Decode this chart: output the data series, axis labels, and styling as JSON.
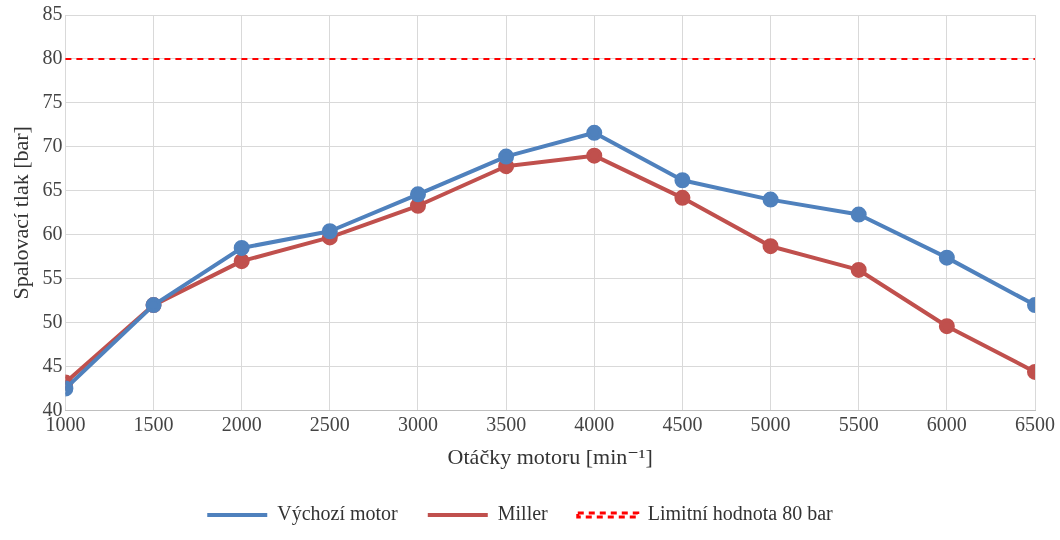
{
  "chart_data": {
    "type": "line",
    "xlabel": "Otáčky motoru [min⁻¹]",
    "ylabel": "Spalovací tlak [bar]",
    "x": [
      1000,
      1500,
      2000,
      2500,
      3000,
      3500,
      4000,
      4500,
      5000,
      5500,
      6000,
      6500
    ],
    "series": [
      {
        "name": "Výchozí motor",
        "color": "#4f81bd",
        "values": [
          42.5,
          52,
          58.5,
          60.4,
          64.6,
          68.9,
          71.6,
          66.2,
          64.0,
          62.3,
          57.4,
          52.0
        ]
      },
      {
        "name": "Miller",
        "color": "#c0504d",
        "values": [
          43.2,
          52,
          57.0,
          59.7,
          63.3,
          67.8,
          69.0,
          64.2,
          58.7,
          56.0,
          49.6,
          44.4
        ]
      }
    ],
    "xlim": [
      1000,
      6500
    ],
    "xticks": [
      1000,
      1500,
      2000,
      2500,
      3000,
      3500,
      4000,
      4500,
      5000,
      5500,
      6000,
      6500
    ],
    "ylim": [
      40,
      85
    ],
    "yticks": [
      40,
      45,
      50,
      55,
      60,
      65,
      70,
      75,
      80,
      85
    ],
    "ref_lines": [
      {
        "axis": "y",
        "value": 80,
        "label": "Limitní hodnota 80 bar",
        "color": "#ff0000",
        "line_style": "dashed"
      }
    ],
    "grid": true,
    "legend": "bottom",
    "marker": "circle",
    "line_style": "solid"
  }
}
